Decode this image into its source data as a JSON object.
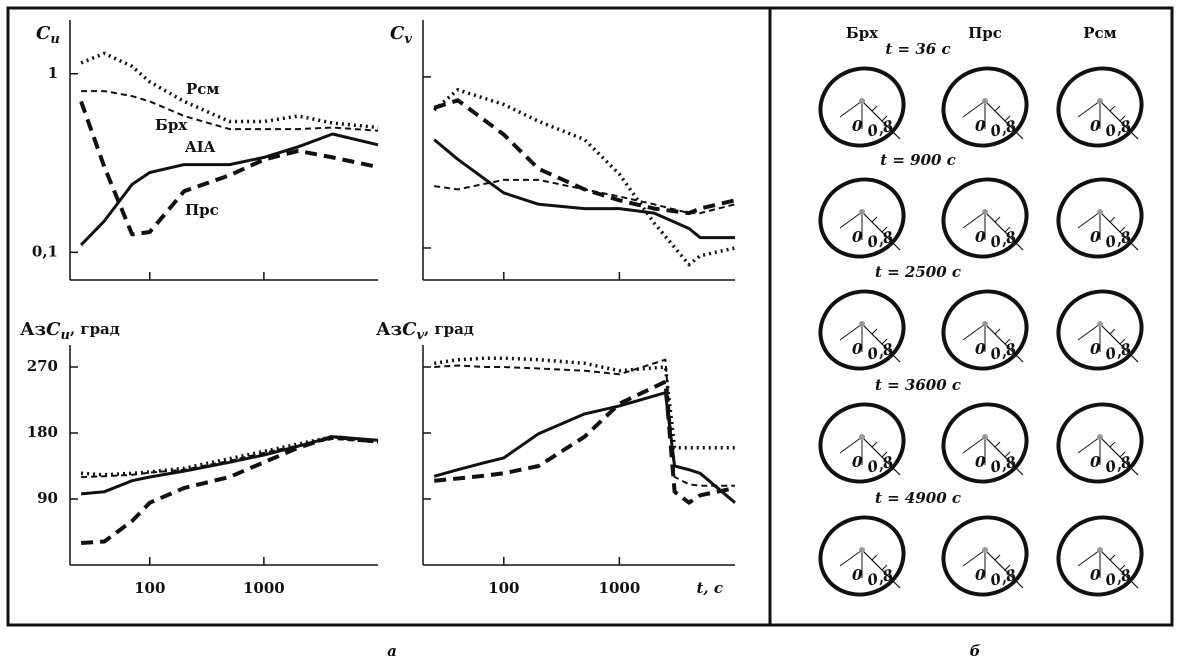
{
  "chart_data": [
    {
      "type": "line",
      "title": "C",
      "title_subscript": "u",
      "xlog": true,
      "ylog": true,
      "xlim": [
        20,
        10000
      ],
      "ylim": [
        0.07,
        2
      ],
      "xticks": [
        100,
        1000
      ],
      "xtick_labels": false,
      "yticks": [
        1,
        {
          "value": 0.1,
          "label": "0,1"
        }
      ],
      "ytick_labels": true,
      "x": [
        25,
        40,
        70,
        100,
        200,
        500,
        1000,
        2000,
        4000,
        10000
      ],
      "series": [
        {
          "name": "AIA",
          "color": "#111111",
          "style": "solid",
          "values": [
            0.11,
            0.15,
            0.24,
            0.28,
            0.31,
            0.31,
            0.34,
            0.39,
            0.46,
            0.4
          ]
        },
        {
          "name": "Рсм",
          "color": "#111111",
          "style": "dotted",
          "values": [
            1.15,
            1.3,
            1.1,
            0.9,
            0.7,
            0.54,
            0.54,
            0.58,
            0.53,
            0.5
          ]
        },
        {
          "name": "Брх",
          "color": "#111111",
          "style": "dashed",
          "values": [
            0.8,
            0.8,
            0.75,
            0.7,
            0.58,
            0.49,
            0.49,
            0.49,
            0.5,
            0.48
          ]
        },
        {
          "name": "Прс",
          "color": "#111111",
          "style": "long-dashed",
          "values": [
            0.7,
            0.3,
            0.126,
            0.13,
            0.22,
            0.27,
            0.33,
            0.37,
            0.34,
            0.3
          ]
        }
      ]
    },
    {
      "type": "line",
      "title": "C",
      "title_subscript": "v",
      "xlog": true,
      "ylog": true,
      "xlim": [
        20,
        10000
      ],
      "ylim": [
        0.065,
        2.15
      ],
      "xticks": [
        100,
        1000
      ],
      "xtick_labels": false,
      "yticks": [
        1,
        0.1
      ],
      "ytick_labels": false,
      "x": [
        25,
        40,
        100,
        200,
        500,
        1000,
        2000,
        4000,
        5000,
        10000
      ],
      "series": [
        {
          "color": "#111111",
          "style": "solid",
          "values": [
            0.43,
            0.33,
            0.21,
            0.18,
            0.17,
            0.17,
            0.16,
            0.13,
            0.115,
            0.115
          ]
        },
        {
          "color": "#111111",
          "style": "dotted",
          "values": [
            0.64,
            0.84,
            0.69,
            0.55,
            0.43,
            0.27,
            0.14,
            0.08,
            0.09,
            0.1
          ]
        },
        {
          "color": "#111111",
          "style": "dashed",
          "values": [
            0.23,
            0.22,
            0.25,
            0.25,
            0.22,
            0.2,
            0.18,
            0.16,
            0.16,
            0.18
          ]
        },
        {
          "color": "#111111",
          "style": "long-dashed",
          "values": [
            0.66,
            0.73,
            0.46,
            0.29,
            0.22,
            0.19,
            0.17,
            0.16,
            0.17,
            0.19
          ]
        }
      ]
    },
    {
      "type": "line",
      "title_prefix": "Аз",
      "title": "C",
      "title_subscript": "u",
      "title_suffix": ", град",
      "xlog": true,
      "ylog": false,
      "xlim": [
        20,
        10000
      ],
      "ylim": [
        0,
        300
      ],
      "xticks": [
        100,
        1000
      ],
      "xtick_labels": true,
      "yticks": [
        90,
        180,
        270
      ],
      "ytick_labels": true,
      "x": [
        25,
        40,
        70,
        100,
        200,
        500,
        1000,
        2000,
        4000,
        10000
      ],
      "series": [
        {
          "color": "#111111",
          "style": "solid",
          "values": [
            97,
            100,
            115,
            120,
            128,
            140,
            150,
            162,
            175,
            170
          ]
        },
        {
          "color": "#111111",
          "style": "dotted",
          "values": [
            125,
            123,
            125,
            127,
            132,
            145,
            155,
            165,
            175,
            168
          ]
        },
        {
          "color": "#111111",
          "style": "dashed",
          "values": [
            120,
            121,
            123,
            126,
            130,
            142,
            153,
            163,
            172,
            167
          ]
        },
        {
          "color": "#111111",
          "style": "long-dashed",
          "values": [
            30,
            32,
            60,
            85,
            105,
            120,
            140,
            160,
            175,
            168
          ]
        }
      ]
    },
    {
      "type": "line",
      "title_prefix": "Аз",
      "title": "C",
      "title_subscript": "v",
      "title_suffix": ", град",
      "xlabel": "t, с",
      "xlog": true,
      "ylog": false,
      "xlim": [
        20,
        10000
      ],
      "ylim": [
        0,
        300
      ],
      "xticks": [
        100,
        1000
      ],
      "xtick_labels": true,
      "yticks": [
        90,
        180,
        270
      ],
      "ytick_labels": false,
      "x": [
        25,
        40,
        70,
        100,
        200,
        500,
        1000,
        2500,
        3000,
        4000,
        5000,
        10000
      ],
      "series": [
        {
          "color": "#111111",
          "style": "solid",
          "values": [
            121,
            130,
            140,
            146,
            179,
            206,
            217,
            235,
            135,
            130,
            125,
            85
          ]
        },
        {
          "color": "#111111",
          "style": "dotted",
          "values": [
            275,
            280,
            282,
            282,
            280,
            275,
            265,
            270,
            160,
            160,
            160,
            160
          ]
        },
        {
          "color": "#111111",
          "style": "dashed",
          "values": [
            270,
            272,
            270,
            270,
            268,
            265,
            260,
            280,
            120,
            110,
            108,
            108
          ]
        },
        {
          "color": "#111111",
          "style": "long-dashed",
          "values": [
            115,
            118,
            122,
            125,
            135,
            175,
            220,
            250,
            100,
            85,
            95,
            105
          ]
        }
      ]
    }
  ],
  "hodographs": {
    "columns": [
      "Брх",
      "Прс",
      "Рсм"
    ],
    "rows": [
      "t = 36 с",
      "t = 900 с",
      "t = 2500 с",
      "t = 3600 с",
      "t = 4900 с"
    ],
    "axis_start": "0",
    "axis_end": "0,8"
  },
  "captions": [
    "а",
    "б"
  ]
}
